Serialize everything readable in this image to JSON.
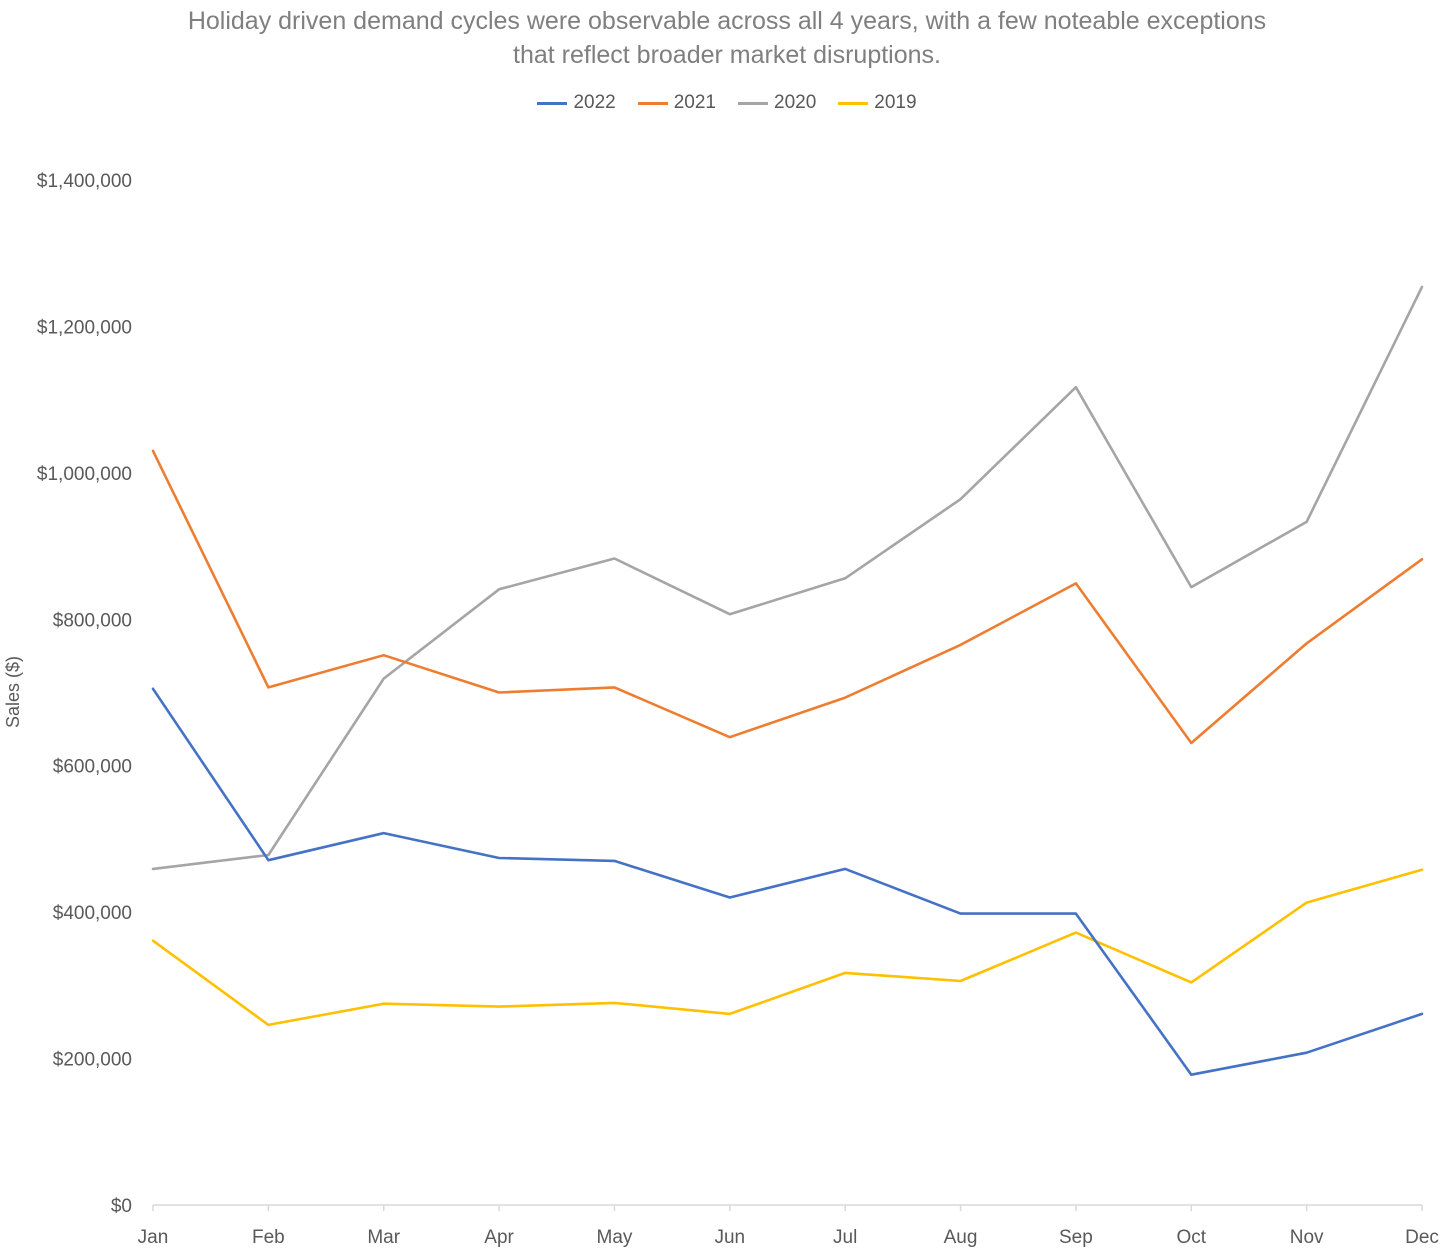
{
  "chart_data": {
    "type": "line",
    "title_lines": [
      "Holiday driven demand cycles were observable across all 4 years, with a few noteable exceptions",
      "that reflect broader market disruptions."
    ],
    "xlabel": "",
    "ylabel": "Sales ($)",
    "ylim": [
      0,
      1400000
    ],
    "y_ticks": [
      0,
      200000,
      400000,
      600000,
      800000,
      1000000,
      1200000,
      1400000
    ],
    "y_tick_labels": [
      "$0",
      "$200,000",
      "$400,000",
      "$600,000",
      "$800,000",
      "$1,000,000",
      "$1,200,000",
      "$1,400,000"
    ],
    "categories": [
      "Jan",
      "Feb",
      "Mar",
      "Apr",
      "May",
      "Jun",
      "Jul",
      "Aug",
      "Sep",
      "Oct",
      "Nov",
      "Dec"
    ],
    "grid": false,
    "legend_position": "top",
    "series": [
      {
        "name": "2022",
        "color": "#4472c4",
        "values": [
          705000,
          471000,
          508000,
          474000,
          470000,
          420000,
          459000,
          398000,
          398000,
          178000,
          208000,
          261000
        ]
      },
      {
        "name": "2021",
        "color": "#ed7d31",
        "values": [
          1030000,
          707000,
          751000,
          700000,
          707000,
          639000,
          693000,
          765000,
          849000,
          631000,
          767000,
          882000
        ]
      },
      {
        "name": "2020",
        "color": "#a5a5a5",
        "values": [
          459000,
          478000,
          719000,
          841000,
          883000,
          807000,
          856000,
          964000,
          1117000,
          844000,
          933000,
          1254000
        ]
      },
      {
        "name": "2019",
        "color": "#ffc000",
        "values": [
          361000,
          246000,
          275000,
          271000,
          276000,
          261000,
          317000,
          306000,
          372000,
          304000,
          413000,
          458000
        ]
      }
    ]
  }
}
